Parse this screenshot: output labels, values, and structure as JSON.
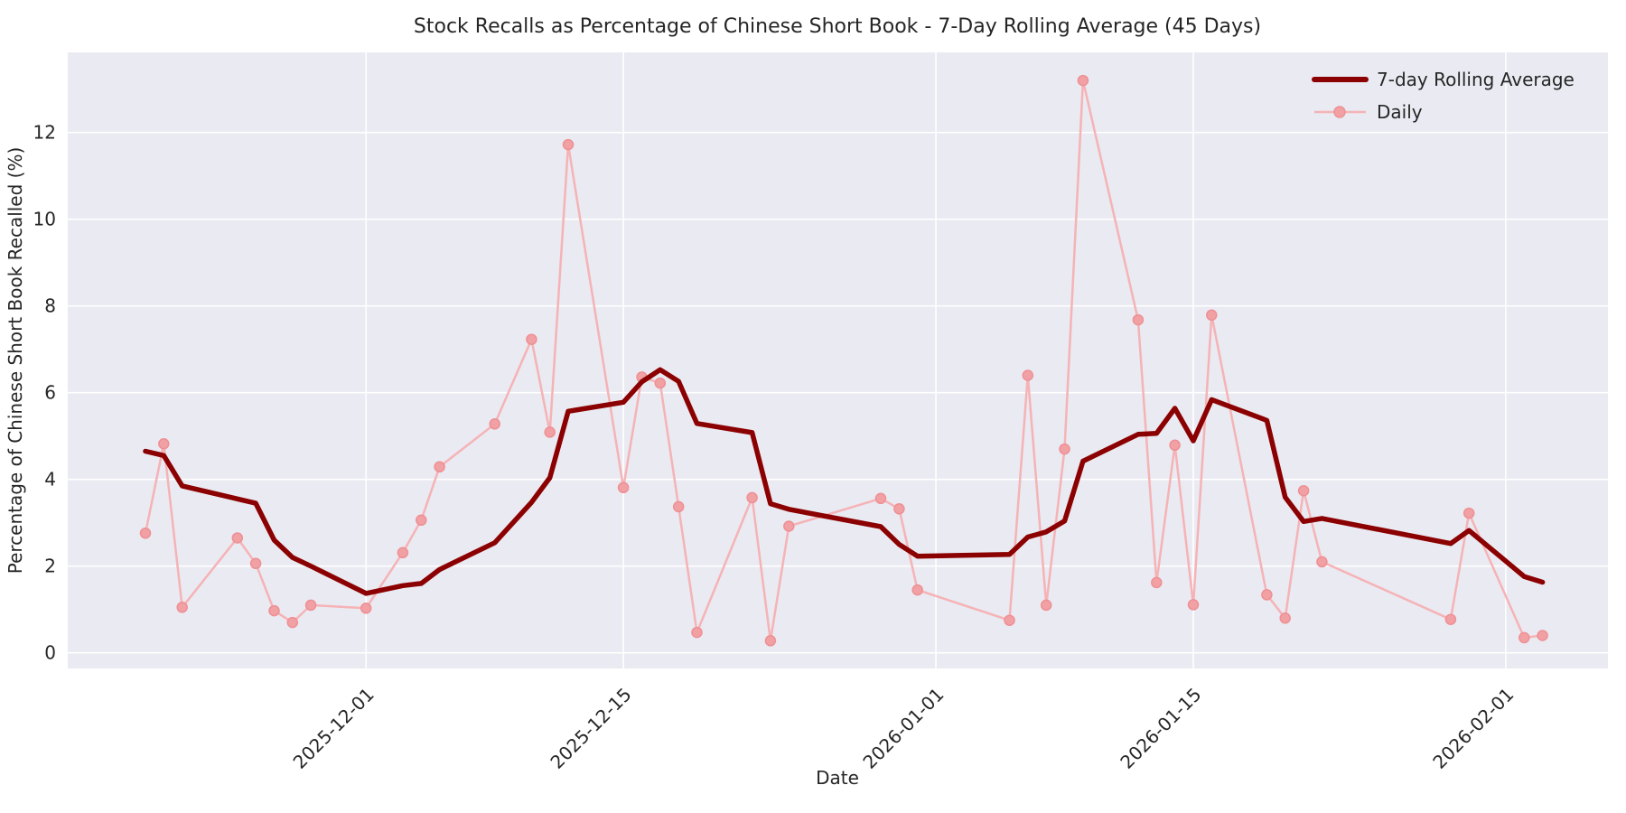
{
  "chart_data": {
    "type": "line",
    "title": "Stock Recalls as Percentage of Chinese Short Book - 7-Day Rolling Average (45 Days)",
    "xlabel": "Date",
    "ylabel": "Percentage of Chinese Short Book Recalled (%)",
    "x_tick_labels": [
      "2025-12-01",
      "2025-12-15",
      "2026-01-01",
      "2026-01-15",
      "2026-02-01"
    ],
    "y_ticks": [
      0,
      2,
      4,
      6,
      8,
      10,
      12
    ],
    "ylim": [
      -0.36,
      13.85
    ],
    "grid": "on",
    "legend_position": "upper right",
    "colors": {
      "plot_background": "#eaeaf2",
      "grid_line": "#ffffff",
      "rolling_line": "#8b0000",
      "daily_line": "#f5b3b6",
      "daily_marker_fill": "#f1a0a4",
      "daily_marker_edge": "#ee9094",
      "text": "#262626"
    },
    "dates": [
      "2025-11-19",
      "2025-11-20",
      "2025-11-21",
      "2025-11-24",
      "2025-11-25",
      "2025-11-26",
      "2025-11-27",
      "2025-11-28",
      "2025-12-01",
      "2025-12-03",
      "2025-12-04",
      "2025-12-05",
      "2025-12-08",
      "2025-12-10",
      "2025-12-11",
      "2025-12-12",
      "2025-12-15",
      "2025-12-16",
      "2025-12-17",
      "2025-12-18",
      "2025-12-19",
      "2025-12-22",
      "2025-12-23",
      "2025-12-24",
      "2025-12-29",
      "2025-12-30",
      "2025-12-31",
      "2026-01-05",
      "2026-01-06",
      "2026-01-07",
      "2026-01-08",
      "2026-01-09",
      "2026-01-12",
      "2026-01-13",
      "2026-01-14",
      "2026-01-15",
      "2026-01-16",
      "2026-01-19",
      "2026-01-20",
      "2026-01-21",
      "2026-01-22",
      "2026-01-29",
      "2026-01-30",
      "2026-02-02",
      "2026-02-03"
    ],
    "series": [
      {
        "name": "7-day Rolling Average",
        "values": [
          4.65,
          4.55,
          3.85,
          3.55,
          3.45,
          2.6,
          2.2,
          2.0,
          1.37,
          1.55,
          1.6,
          1.92,
          2.54,
          3.47,
          4.04,
          5.57,
          5.78,
          6.25,
          6.53,
          6.26,
          5.29,
          5.08,
          3.44,
          3.31,
          2.91,
          2.5,
          2.23,
          2.27,
          2.67,
          2.79,
          3.04,
          4.42,
          5.04,
          5.06,
          5.64,
          4.89,
          5.84,
          5.36,
          3.59,
          3.03,
          3.1,
          2.52,
          2.82,
          1.76,
          1.63
        ]
      },
      {
        "name": "Daily",
        "values": [
          2.76,
          4.82,
          1.05,
          2.65,
          2.06,
          0.97,
          0.7,
          1.1,
          1.03,
          2.31,
          3.06,
          4.29,
          5.28,
          7.23,
          5.09,
          11.72,
          3.81,
          6.36,
          6.22,
          3.37,
          0.47,
          3.58,
          0.28,
          2.92,
          3.56,
          3.32,
          1.45,
          0.75,
          6.4,
          1.1,
          4.7,
          13.2,
          7.68,
          1.62,
          4.79,
          1.11,
          7.79,
          1.34,
          0.8,
          3.74,
          2.1,
          0.77,
          3.22,
          0.35,
          0.4
        ]
      }
    ]
  }
}
